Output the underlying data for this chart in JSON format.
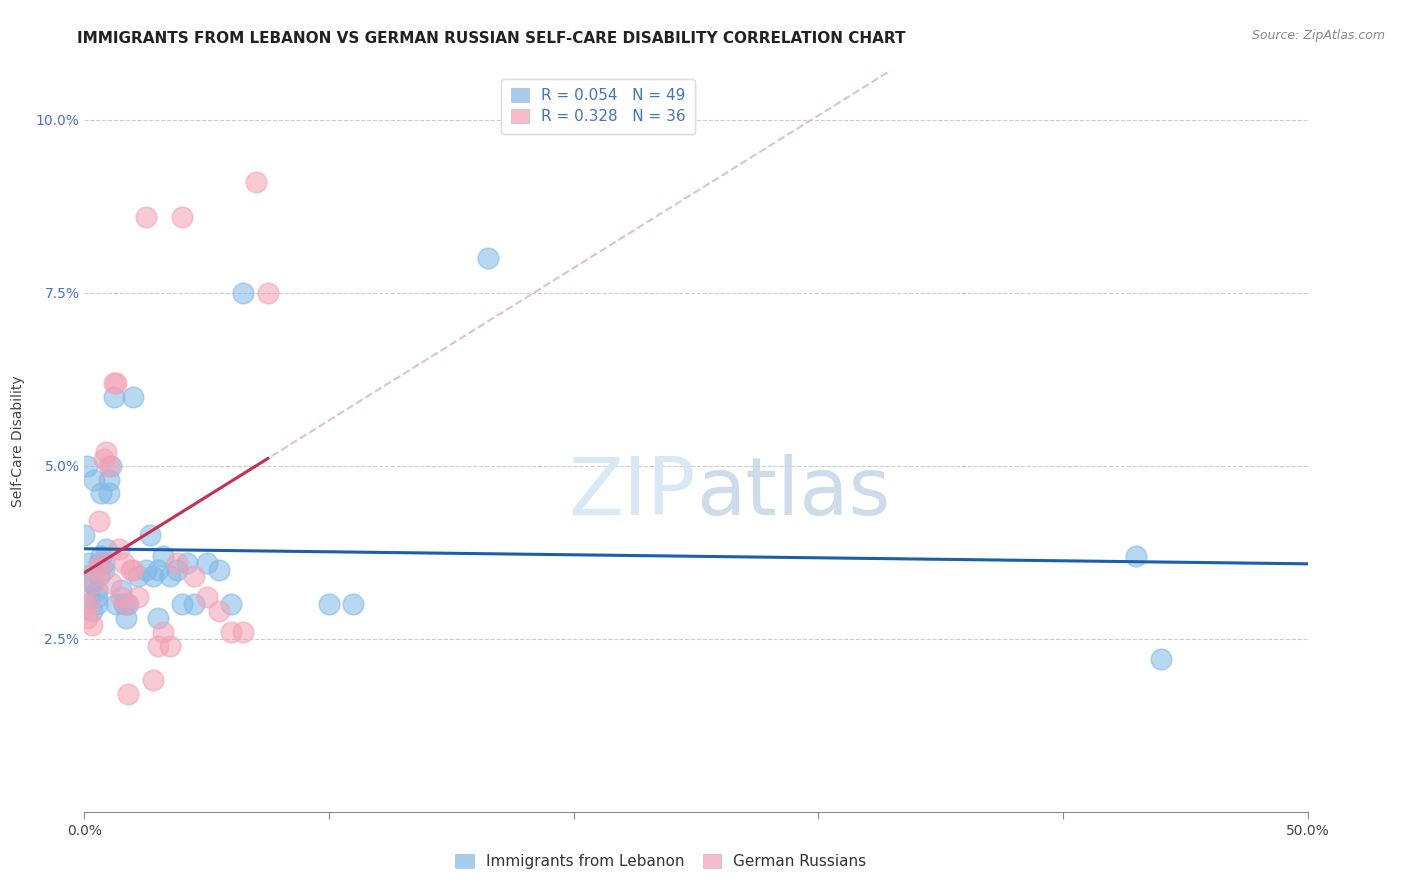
{
  "title": "IMMIGRANTS FROM LEBANON VS GERMAN RUSSIAN SELF-CARE DISABILITY CORRELATION CHART",
  "source": "Source: ZipAtlas.com",
  "ylabel_label": "Self-Care Disability",
  "xlim": [
    0.0,
    0.5
  ],
  "ylim": [
    0.0,
    0.107
  ],
  "legend1_label": "Immigrants from Lebanon",
  "legend2_label": "German Russians",
  "R1": 0.054,
  "N1": 49,
  "R2": 0.328,
  "N2": 36,
  "blue_color": "#7EB8E8",
  "pink_color": "#F4A0B5",
  "trend_blue": "#1A5FAB",
  "trend_pink_solid": "#C83050",
  "trend_pink_dash_color": "#DDB0C0",
  "watermark_color": "#D8E8F5",
  "title_fontsize": 11,
  "tick_fontsize": 10,
  "legend_fontsize": 11,
  "blue_points_x": [
    0.0,
    0.001,
    0.001,
    0.002,
    0.002,
    0.003,
    0.003,
    0.004,
    0.005,
    0.005,
    0.005,
    0.006,
    0.006,
    0.007,
    0.007,
    0.008,
    0.008,
    0.009,
    0.01,
    0.01,
    0.011,
    0.012,
    0.013,
    0.015,
    0.016,
    0.017,
    0.018,
    0.02,
    0.022,
    0.025,
    0.027,
    0.028,
    0.03,
    0.03,
    0.032,
    0.035,
    0.038,
    0.04,
    0.042,
    0.045,
    0.05,
    0.055,
    0.06,
    0.065,
    0.1,
    0.11,
    0.165,
    0.43,
    0.44
  ],
  "blue_points_y": [
    0.04,
    0.034,
    0.05,
    0.036,
    0.031,
    0.029,
    0.033,
    0.048,
    0.032,
    0.03,
    0.031,
    0.034,
    0.036,
    0.037,
    0.046,
    0.036,
    0.035,
    0.038,
    0.046,
    0.048,
    0.05,
    0.06,
    0.03,
    0.032,
    0.03,
    0.028,
    0.03,
    0.06,
    0.034,
    0.035,
    0.04,
    0.034,
    0.035,
    0.028,
    0.037,
    0.034,
    0.035,
    0.03,
    0.036,
    0.03,
    0.036,
    0.035,
    0.03,
    0.075,
    0.03,
    0.03,
    0.08,
    0.037,
    0.022
  ],
  "pink_points_x": [
    0.0,
    0.001,
    0.002,
    0.003,
    0.004,
    0.005,
    0.006,
    0.007,
    0.008,
    0.009,
    0.01,
    0.011,
    0.012,
    0.013,
    0.014,
    0.015,
    0.016,
    0.017,
    0.018,
    0.019,
    0.02,
    0.022,
    0.025,
    0.028,
    0.03,
    0.032,
    0.035,
    0.038,
    0.04,
    0.045,
    0.05,
    0.055,
    0.06,
    0.065,
    0.07,
    0.075
  ],
  "pink_points_y": [
    0.03,
    0.028,
    0.03,
    0.027,
    0.033,
    0.035,
    0.042,
    0.036,
    0.051,
    0.052,
    0.05,
    0.033,
    0.062,
    0.062,
    0.038,
    0.031,
    0.036,
    0.03,
    0.017,
    0.035,
    0.035,
    0.031,
    0.086,
    0.019,
    0.024,
    0.026,
    0.024,
    0.036,
    0.086,
    0.034,
    0.031,
    0.029,
    0.026,
    0.026,
    0.091,
    0.075
  ]
}
